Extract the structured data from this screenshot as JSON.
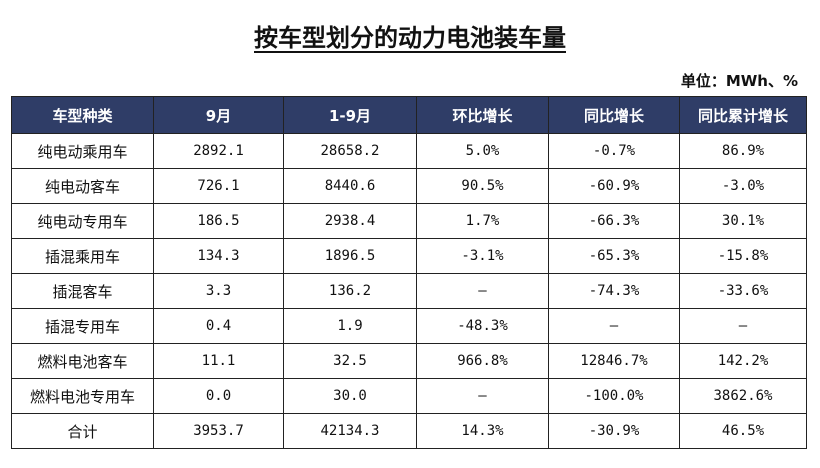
{
  "title": "按车型划分的动力电池装车量",
  "unit_label": "单位：MWh、%",
  "table": {
    "headers": [
      "车型种类",
      "9月",
      "1-9月",
      "环比增长",
      "同比增长",
      "同比累计增长"
    ],
    "rows": [
      [
        "纯电动乘用车",
        "2892.1",
        "28658.2",
        "5.0%",
        "-0.7%",
        "86.9%"
      ],
      [
        "纯电动客车",
        "726.1",
        "8440.6",
        "90.5%",
        "-60.9%",
        "-3.0%"
      ],
      [
        "纯电动专用车",
        "186.5",
        "2938.4",
        "1.7%",
        "-66.3%",
        "30.1%"
      ],
      [
        "插混乘用车",
        "134.3",
        "1896.5",
        "-3.1%",
        "-65.3%",
        "-15.8%"
      ],
      [
        "插混客车",
        "3.3",
        "136.2",
        "—",
        "-74.3%",
        "-33.6%"
      ],
      [
        "插混专用车",
        "0.4",
        "1.9",
        "-48.3%",
        "—",
        "—"
      ],
      [
        "燃料电池客车",
        "11.1",
        "32.5",
        "966.8%",
        "12846.7%",
        "142.2%"
      ],
      [
        "燃料电池专用车",
        "0.0",
        "30.0",
        "—",
        "-100.0%",
        "3862.6%"
      ],
      [
        "合计",
        "3953.7",
        "42134.3",
        "14.3%",
        "-30.9%",
        "46.5%"
      ]
    ]
  },
  "colors": {
    "header_bg": "#2f3d67",
    "header_text": "#ffffff",
    "border": "#222222"
  }
}
